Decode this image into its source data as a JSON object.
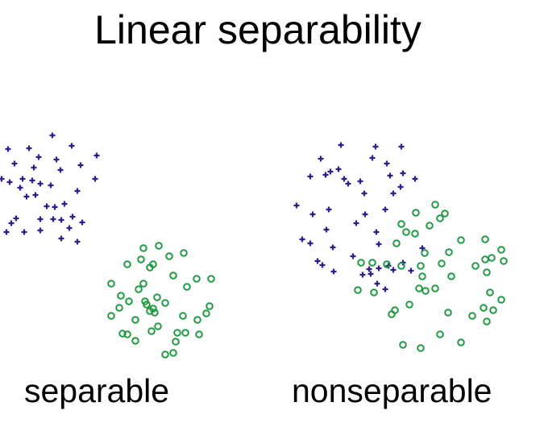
{
  "title": "Linear separability",
  "captions": {
    "left": "separable",
    "right": "nonseparable"
  },
  "colors": {
    "plus": "#2d1e8c",
    "circle": "#1f9a42"
  },
  "chart_data": {
    "type": "scatter",
    "panels": [
      {
        "label": "separable",
        "series": [
          {
            "marker": "plus",
            "points": [
              [
                65,
                168
              ],
              [
                10,
                185
              ],
              [
                36,
                184
              ],
              [
                89,
                181
              ],
              [
                120,
                193
              ],
              [
                18,
                203
              ],
              [
                48,
                195
              ],
              [
                70,
                198
              ],
              [
                42,
                208
              ],
              [
                75,
                211
              ],
              [
                100,
                205
              ],
              [
                2,
                222
              ],
              [
                12,
                226
              ],
              [
                28,
                222
              ],
              [
                40,
                224
              ],
              [
                25,
                233
              ],
              [
                50,
                228
              ],
              [
                63,
                230
              ],
              [
                118,
                222
              ],
              [
                96,
                237
              ],
              [
                33,
                244
              ],
              [
                44,
                242
              ],
              [
                58,
                256
              ],
              [
                80,
                253
              ],
              [
                68,
                257
              ],
              [
                90,
                269
              ],
              [
                20,
                271
              ],
              [
                50,
                272
              ],
              [
                76,
                273
              ],
              [
                66,
                272
              ],
              [
                14,
                277
              ],
              [
                86,
                283
              ],
              [
                102,
                276
              ],
              [
                8,
                288
              ],
              [
                30,
                288
              ],
              [
                50,
                286
              ],
              [
                76,
                296
              ],
              [
                96,
                300
              ]
            ]
          },
          {
            "marker": "circle",
            "points": [
              [
                178,
                308
              ],
              [
                197,
                305
              ],
              [
                210,
                318
              ],
              [
                228,
                314
              ],
              [
                158,
                328
              ],
              [
                175,
                322
              ],
              [
                190,
                328
              ],
              [
                186,
                332
              ],
              [
                138,
                352
              ],
              [
                150,
                367
              ],
              [
                172,
                359
              ],
              [
                178,
                352
              ],
              [
                215,
                342
              ],
              [
                232,
                356
              ],
              [
                244,
                346
              ],
              [
                262,
                346
              ],
              [
                160,
                374
              ],
              [
                180,
                374
              ],
              [
                195,
                369
              ],
              [
                205,
                376
              ],
              [
                186,
                386
              ],
              [
                192,
                388
              ],
              [
                190,
                383
              ],
              [
                182,
                378
              ],
              [
                260,
                380
              ],
              [
                256,
                389
              ],
              [
                148,
                382
              ],
              [
                138,
                392
              ],
              [
                168,
                397
              ],
              [
                227,
                392
              ],
              [
                245,
                397
              ],
              [
                188,
                411
              ],
              [
                196,
                405
              ],
              [
                158,
                415
              ],
              [
                152,
                414
              ],
              [
                168,
                423
              ],
              [
                220,
                413
              ],
              [
                230,
                413
              ],
              [
                247,
                415
              ],
              [
                218,
                424
              ],
              [
                215,
                438
              ],
              [
                205,
                440
              ]
            ]
          }
        ]
      },
      {
        "label": "nonseparable",
        "series": [
          {
            "marker": "plus",
            "points": [
              [
                423,
                180
              ],
              [
                466,
                182
              ],
              [
                498,
                182
              ],
              [
                398,
                197
              ],
              [
                462,
                196
              ],
              [
                480,
                203
              ],
              [
                404,
                217
              ],
              [
                410,
                213
              ],
              [
                420,
                210
              ],
              [
                427,
                222
              ],
              [
                432,
                228
              ],
              [
                447,
                225
              ],
              [
                484,
                218
              ],
              [
                500,
                215
              ],
              [
                385,
                219
              ],
              [
                515,
                222
              ],
              [
                497,
                232
              ],
              [
                452,
                240
              ],
              [
                488,
                240
              ],
              [
                368,
                255
              ],
              [
                408,
                260
              ],
              [
                388,
                266
              ],
              [
                453,
                266
              ],
              [
                478,
                260
              ],
              [
                442,
                277
              ],
              [
                405,
                285
              ],
              [
                375,
                297
              ],
              [
                385,
                302
              ],
              [
                413,
                307
              ],
              [
                467,
                288
              ],
              [
                470,
                303
              ],
              [
                438,
                318
              ],
              [
                394,
                324
              ],
              [
                400,
                329
              ],
              [
                414,
                337
              ],
              [
                458,
                334
              ],
              [
                470,
                333
              ],
              [
                482,
                330
              ],
              [
                488,
                335
              ],
              [
                460,
                340
              ],
              [
                450,
                341
              ],
              [
                500,
                326
              ],
              [
                510,
                336
              ],
              [
                468,
                352
              ],
              [
                478,
                359
              ],
              [
                524,
                308
              ]
            ]
          },
          {
            "marker": "circle",
            "points": [
              [
                540,
                254
              ],
              [
                552,
                265
              ],
              [
                516,
                264
              ],
              [
                546,
                271
              ],
              [
                498,
                278
              ],
              [
                533,
                280
              ],
              [
                504,
                288
              ],
              [
                515,
                290
              ],
              [
                492,
                302
              ],
              [
                572,
                298
              ],
              [
                602,
                297
              ],
              [
                557,
                313
              ],
              [
                527,
                314
              ],
              [
                602,
                322
              ],
              [
                622,
                310
              ],
              [
                448,
                326
              ],
              [
                462,
                326
              ],
              [
                480,
                328
              ],
              [
                498,
                330
              ],
              [
                522,
                330
              ],
              [
                548,
                327
              ],
              [
                610,
                320
              ],
              [
                625,
                324
              ],
              [
                590,
                330
              ],
              [
                524,
                343
              ],
              [
                560,
                343
              ],
              [
                540,
                358
              ],
              [
                520,
                358
              ],
              [
                604,
                338
              ],
              [
                444,
                360
              ],
              [
                464,
                363
              ],
              [
                528,
                361
              ],
              [
                608,
                363
              ],
              [
                622,
                372
              ],
              [
                508,
                378
              ],
              [
                486,
                390
              ],
              [
                490,
                385
              ],
              [
                556,
                388
              ],
              [
                586,
                392
              ],
              [
                600,
                382
              ],
              [
                612,
                385
              ],
              [
                546,
                415
              ],
              [
                522,
                432
              ],
              [
                500,
                428
              ],
              [
                572,
                425
              ],
              [
                604,
                399
              ]
            ]
          }
        ]
      }
    ]
  }
}
